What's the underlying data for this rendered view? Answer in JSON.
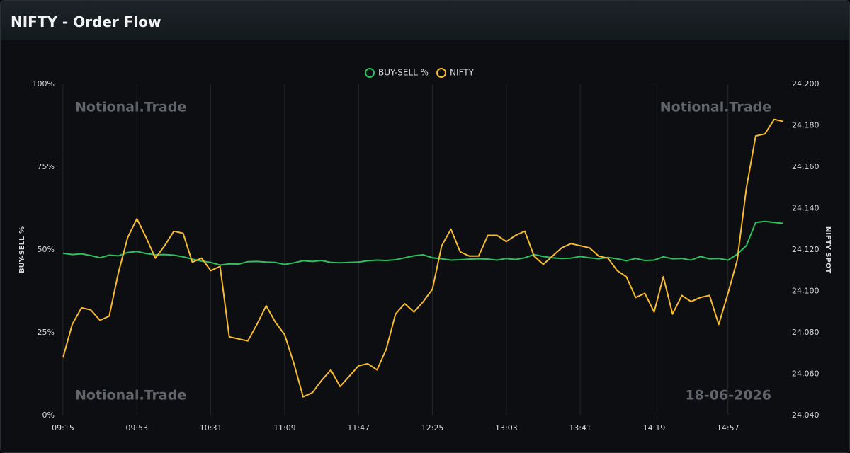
{
  "header": {
    "title": "NIFTY - Order Flow"
  },
  "chart_data": {
    "type": "line",
    "watermarks": [
      "Notional.Trade",
      "Notional.Trade",
      "Notional.Trade"
    ],
    "date": "18-06-2026",
    "y_label": "BUY-SELL %",
    "y2_label": "NIFTY SPOT",
    "legend": "top",
    "categories": [
      "09:15",
      null,
      null,
      null,
      null,
      null,
      null,
      null,
      "09:53",
      null,
      null,
      null,
      null,
      null,
      null,
      null,
      "10:31",
      null,
      null,
      null,
      null,
      null,
      null,
      null,
      "11:09",
      null,
      null,
      null,
      null,
      null,
      null,
      null,
      "11:47",
      null,
      null,
      null,
      null,
      null,
      null,
      null,
      "12:25",
      null,
      null,
      null,
      null,
      null,
      null,
      null,
      "13:03",
      null,
      null,
      null,
      null,
      null,
      null,
      null,
      "13:41",
      null,
      null,
      null,
      null,
      null,
      null,
      null,
      "14:19",
      null,
      null,
      null,
      null,
      null,
      null,
      null,
      "14:57",
      null,
      null,
      null,
      null,
      null,
      null
    ],
    "series": [
      {
        "name": "BUY-SELL %",
        "color": "#2fbf5e",
        "values": [
          49,
          48.6,
          48.8,
          48.3,
          47.6,
          48.4,
          48.2,
          49.2,
          49.5,
          48.9,
          48.5,
          48.6,
          48.4,
          47.9,
          47.2,
          46.6,
          46.2,
          45.4,
          45.8,
          45.7,
          46.4,
          46.5,
          46.3,
          46.2,
          45.6,
          46.1,
          46.7,
          46.5,
          46.8,
          46.2,
          46.1,
          46.2,
          46.3,
          46.7,
          46.9,
          46.8,
          47,
          47.6,
          48.2,
          48.5,
          47.6,
          47.3,
          46.9,
          47,
          47.2,
          47.3,
          47.2,
          46.9,
          47.4,
          47.1,
          47.6,
          48.6,
          48,
          47.6,
          47.4,
          47.5,
          48,
          47.6,
          47.3,
          47.7,
          47.3,
          46.7,
          47.4,
          46.8,
          46.9,
          47.9,
          47.3,
          47.4,
          46.9,
          48,
          47.3,
          47.4,
          46.9,
          48.7,
          51.3,
          58.3,
          58.6,
          58.3,
          58
        ]
      },
      {
        "name": "NIFTY",
        "color": "#f7bb2e",
        "axis": "y2",
        "values": [
          24068,
          24084,
          24092,
          24091,
          24086,
          24088,
          24109,
          24126,
          24135,
          24126,
          24116,
          24122,
          24129,
          24128,
          24114,
          24116,
          24110,
          24112,
          24078,
          24077,
          24076,
          24084,
          24093,
          24085,
          24079,
          24065,
          24049,
          24051,
          24057,
          24062,
          24054,
          24059,
          24064,
          24065,
          24062,
          24072,
          24089,
          24094,
          24090,
          24095,
          24101,
          24122,
          24130,
          24119,
          24117,
          24117,
          24127,
          24127,
          24124,
          24127,
          24129,
          24117,
          24113,
          24117,
          24121,
          24123,
          24122,
          24121,
          24117,
          24116,
          24110,
          24107,
          24097,
          24099,
          24090,
          24107,
          24089,
          24098,
          24095,
          24097,
          24098,
          24084,
          24099,
          24115,
          24150,
          24175,
          24176,
          24183,
          24182
        ]
      }
    ],
    "ylim": [
      0,
      100
    ],
    "yticks": [
      {
        "value": 0,
        "label": "0%"
      },
      {
        "value": 25,
        "label": "25%"
      },
      {
        "value": 50,
        "label": "50%"
      },
      {
        "value": 75,
        "label": "75%"
      },
      {
        "value": 100,
        "label": "100%"
      }
    ],
    "y2lim": [
      24040,
      24200
    ],
    "y2ticks": [
      {
        "value": 24040,
        "label": "24,040"
      },
      {
        "value": 24060,
        "label": "24,060"
      },
      {
        "value": 24080,
        "label": "24,080"
      },
      {
        "value": 24100,
        "label": "24,100"
      },
      {
        "value": 24120,
        "label": "24,120"
      },
      {
        "value": 24140,
        "label": "24,140"
      },
      {
        "value": 24160,
        "label": "24,160"
      },
      {
        "value": 24180,
        "label": "24,180"
      },
      {
        "value": 24200,
        "label": "24,200"
      }
    ],
    "grid": true
  }
}
